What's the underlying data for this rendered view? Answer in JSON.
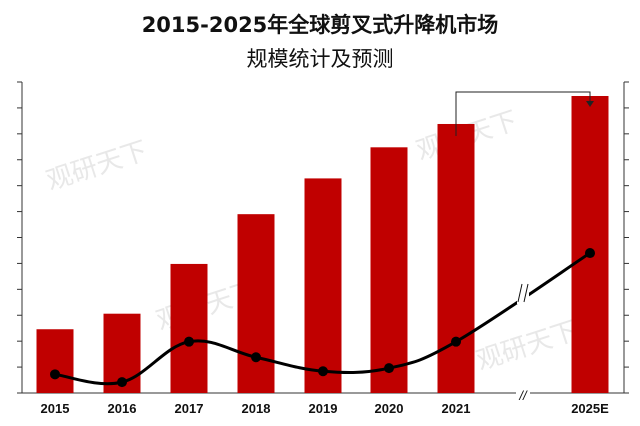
{
  "chart_data": {
    "type": "bar",
    "title_line1": "2015-2025年全球剪叉式升降机市场",
    "title_line2": "规模统计及预测",
    "categories": [
      "2015",
      "2016",
      "2017",
      "2018",
      "2019",
      "2020",
      "2021",
      "2025E"
    ],
    "series": [
      {
        "type": "bar",
        "values": [
          4.1,
          5.1,
          8.3,
          11.5,
          13.8,
          15.8,
          17.3,
          19.1
        ]
      },
      {
        "type": "line",
        "values": [
          1.2,
          0.7,
          3.3,
          2.3,
          1.4,
          1.6,
          3.3,
          9.0
        ]
      }
    ],
    "ylim": [
      0,
      20
    ],
    "bar_color": "#c00000",
    "line_color": "#000000",
    "grid": false,
    "axis_break": "//"
  },
  "watermark": "观研天下"
}
